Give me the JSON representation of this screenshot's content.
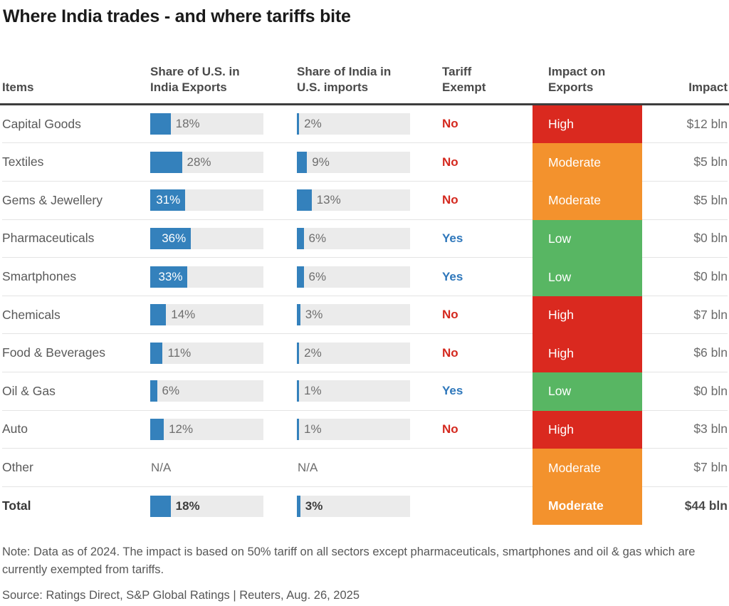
{
  "title": "Where India trades - and where tariffs bite",
  "columns": {
    "items": "Items",
    "us_share": "Share of U.S. in\nIndia Exports",
    "india_share": "Share of India in\nU.S. imports",
    "tariff_exempt": "Tariff\nExempt",
    "impact_level": "Impact on\nExports",
    "impact_value": "Impact"
  },
  "colors": {
    "bar_blue": "#3481bc",
    "bar_track": "#ebebeb",
    "tariff_no": "#d4281e",
    "tariff_yes": "#2e77bb",
    "impact": {
      "high": "#da291f",
      "moderate": "#f3922d",
      "low": "#58b663"
    }
  },
  "rows": [
    {
      "item": "Capital Goods",
      "us_share": 18,
      "us_share_label": "18%",
      "india_share": 2,
      "india_share_label": "2%",
      "tariff_exempt": "No",
      "impact_level": "High",
      "impact_value": "$12 bln"
    },
    {
      "item": "Textiles",
      "us_share": 28,
      "us_share_label": "28%",
      "india_share": 9,
      "india_share_label": "9%",
      "tariff_exempt": "No",
      "impact_level": "Moderate",
      "impact_value": "$5 bln"
    },
    {
      "item": "Gems & Jewellery",
      "us_share": 31,
      "us_share_label": "31%",
      "india_share": 13,
      "india_share_label": "13%",
      "tariff_exempt": "No",
      "impact_level": "Moderate",
      "impact_value": "$5 bln"
    },
    {
      "item": "Pharmaceuticals",
      "us_share": 36,
      "us_share_label": "36%",
      "india_share": 6,
      "india_share_label": "6%",
      "tariff_exempt": "Yes",
      "impact_level": "Low",
      "impact_value": "$0 bln"
    },
    {
      "item": "Smartphones",
      "us_share": 33,
      "us_share_label": "33%",
      "india_share": 6,
      "india_share_label": "6%",
      "tariff_exempt": "Yes",
      "impact_level": "Low",
      "impact_value": "$0 bln"
    },
    {
      "item": "Chemicals",
      "us_share": 14,
      "us_share_label": "14%",
      "india_share": 3,
      "india_share_label": "3%",
      "tariff_exempt": "No",
      "impact_level": "High",
      "impact_value": "$7 bln"
    },
    {
      "item": "Food & Beverages",
      "us_share": 11,
      "us_share_label": "11%",
      "india_share": 2,
      "india_share_label": "2%",
      "tariff_exempt": "No",
      "impact_level": "High",
      "impact_value": "$6 bln"
    },
    {
      "item": "Oil & Gas",
      "us_share": 6,
      "us_share_label": "6%",
      "india_share": 1,
      "india_share_label": "1%",
      "tariff_exempt": "Yes",
      "impact_level": "Low",
      "impact_value": "$0 bln"
    },
    {
      "item": "Auto",
      "us_share": 12,
      "us_share_label": "12%",
      "india_share": 1,
      "india_share_label": "1%",
      "tariff_exempt": "No",
      "impact_level": "High",
      "impact_value": "$3 bln"
    },
    {
      "item": "Other",
      "us_share": null,
      "us_share_label": "N/A",
      "india_share": null,
      "india_share_label": "N/A",
      "tariff_exempt": "",
      "impact_level": "Moderate",
      "impact_value": "$7 bln"
    },
    {
      "item": "Total",
      "us_share": 18,
      "us_share_label": "18%",
      "india_share": 3,
      "india_share_label": "3%",
      "tariff_exempt": "",
      "impact_level": "Moderate",
      "impact_value": "$44 bln",
      "is_total": true
    }
  ],
  "chart_data": {
    "type": "table",
    "title": "Where India trades - and where tariffs bite",
    "categories": [
      "Capital Goods",
      "Textiles",
      "Gems & Jewellery",
      "Pharmaceuticals",
      "Smartphones",
      "Chemicals",
      "Food & Beverages",
      "Oil & Gas",
      "Auto",
      "Other",
      "Total"
    ],
    "series": [
      {
        "name": "Share of U.S. in India Exports (%)",
        "type": "bar",
        "values": [
          18,
          28,
          31,
          36,
          33,
          14,
          11,
          6,
          12,
          null,
          18
        ],
        "axis_max": 100
      },
      {
        "name": "Share of India in U.S. imports (%)",
        "type": "bar",
        "values": [
          2,
          9,
          13,
          6,
          6,
          3,
          2,
          1,
          1,
          null,
          3
        ],
        "axis_max": 100
      },
      {
        "name": "Tariff Exempt",
        "values": [
          "No",
          "No",
          "No",
          "Yes",
          "Yes",
          "No",
          "No",
          "Yes",
          "No",
          "",
          ""
        ]
      },
      {
        "name": "Impact on Exports",
        "values": [
          "High",
          "Moderate",
          "Moderate",
          "Low",
          "Low",
          "High",
          "High",
          "Low",
          "High",
          "Moderate",
          "Moderate"
        ]
      },
      {
        "name": "Impact",
        "values": [
          "$12 bln",
          "$5 bln",
          "$5 bln",
          "$0 bln",
          "$0 bln",
          "$7 bln",
          "$6 bln",
          "$0 bln",
          "$3 bln",
          "$7 bln",
          "$44 bln"
        ]
      }
    ],
    "legend": "none",
    "grid": "row-separators-only"
  },
  "footer": {
    "note": "Note: Data as of 2024. The impact is based on 50% tariff on all sectors except pharmaceuticals, smartphones and oil & gas which are currently exempted from tariffs.",
    "source": "Source: Ratings Direct, S&P Global Ratings | Reuters, Aug. 26, 2025"
  }
}
